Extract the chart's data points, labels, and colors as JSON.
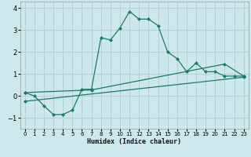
{
  "xlabel": "Humidex (Indice chaleur)",
  "bg_color": "#cde8ea",
  "grid_color": "#b0ced0",
  "line_color": "#1a7a6e",
  "xlim": [
    -0.5,
    23.5
  ],
  "ylim": [
    -1.5,
    4.3
  ],
  "xticks": [
    0,
    1,
    2,
    3,
    4,
    5,
    6,
    7,
    8,
    9,
    10,
    11,
    12,
    13,
    14,
    15,
    16,
    17,
    18,
    19,
    20,
    21,
    22,
    23
  ],
  "yticks": [
    -1,
    0,
    1,
    2,
    3,
    4
  ],
  "line1_x": [
    0,
    1,
    2,
    3,
    4,
    5,
    6,
    7,
    8,
    9,
    10,
    11,
    12,
    13,
    14,
    15,
    16,
    17,
    18,
    19,
    20,
    21,
    22,
    23
  ],
  "line1_y": [
    0.15,
    0.0,
    -0.45,
    -0.85,
    -0.85,
    -0.65,
    0.3,
    0.3,
    2.65,
    2.55,
    3.1,
    3.85,
    3.5,
    3.5,
    3.2,
    2.0,
    1.7,
    1.1,
    1.5,
    1.1,
    1.1,
    0.9,
    0.9,
    0.9
  ],
  "line2_x": [
    0,
    7,
    21,
    23
  ],
  "line2_y": [
    0.15,
    0.27,
    1.45,
    0.9
  ],
  "line3_x": [
    0,
    23
  ],
  "line3_y": [
    -0.25,
    0.85
  ],
  "markersize": 2.5
}
